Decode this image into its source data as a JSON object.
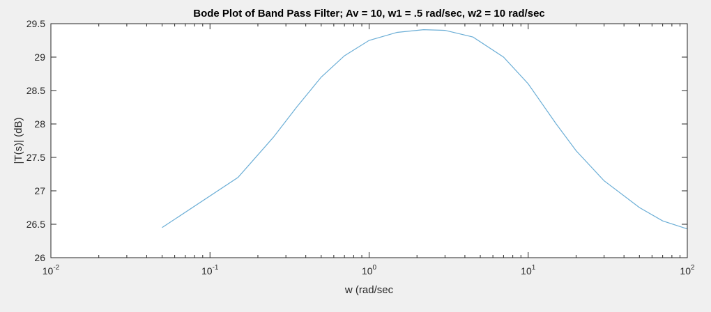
{
  "chart_data": {
    "type": "line",
    "title": "Bode Plot of Band Pass Filter; Av = 10, w1 = .5 rad/sec, w2 = 10 rad/sec",
    "xlabel": "w (rad/sec",
    "ylabel": "|T(s)| (dB)",
    "xscale": "log",
    "xlim": [
      0.01,
      100
    ],
    "ylim": [
      26,
      29.5
    ],
    "grid": false,
    "x_ticks": [
      {
        "value": 0.01,
        "base": "10",
        "exp": "-2"
      },
      {
        "value": 0.1,
        "base": "10",
        "exp": "-1"
      },
      {
        "value": 1,
        "base": "10",
        "exp": "0"
      },
      {
        "value": 10,
        "base": "10",
        "exp": "1"
      },
      {
        "value": 100,
        "base": "10",
        "exp": "2"
      }
    ],
    "y_ticks": [
      "26",
      "26.5",
      "27",
      "27.5",
      "28",
      "28.5",
      "29",
      "29.5"
    ],
    "series": [
      {
        "color": "#6baed6",
        "x": [
          0.05,
          0.15,
          0.25,
          0.35,
          0.5,
          0.7,
          1,
          1.5,
          2.2,
          3,
          4.5,
          7,
          10,
          15,
          20,
          30,
          50,
          70,
          100
        ],
        "y": [
          26.45,
          27.2,
          27.8,
          28.25,
          28.7,
          29.02,
          29.25,
          29.37,
          29.41,
          29.4,
          29.3,
          29.0,
          28.6,
          28.0,
          27.6,
          27.15,
          26.75,
          26.55,
          26.43
        ]
      }
    ]
  }
}
